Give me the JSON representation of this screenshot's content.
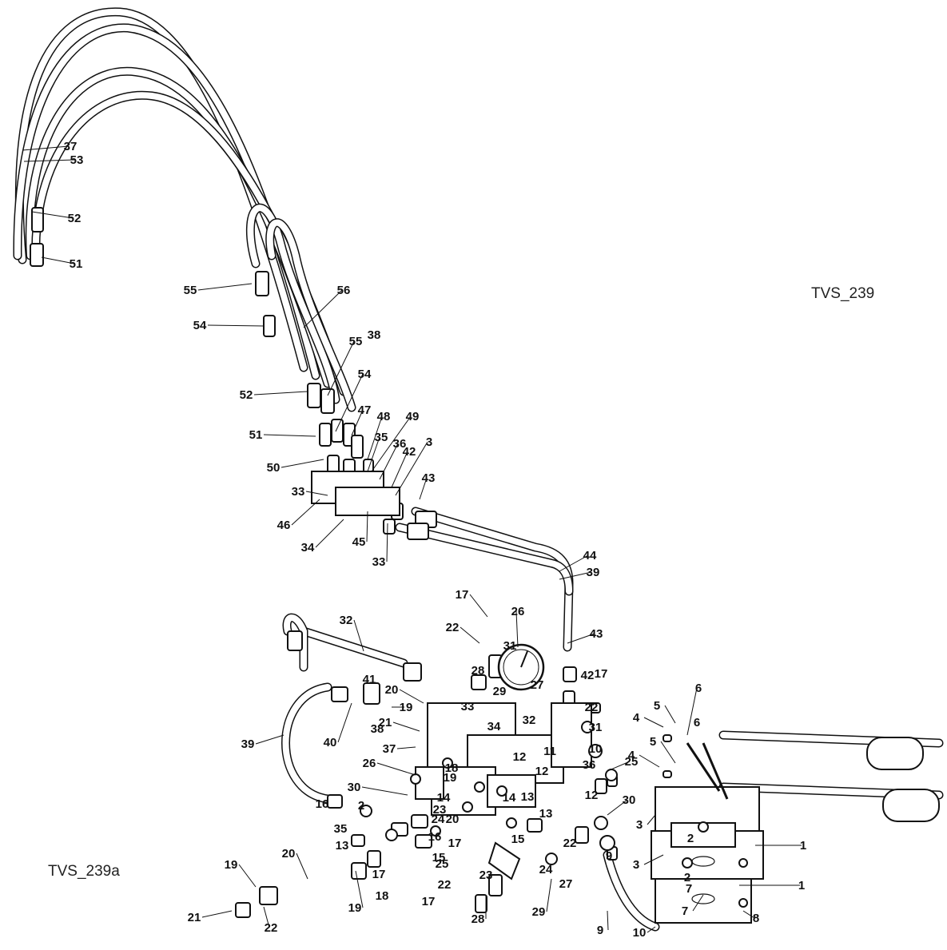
{
  "captions": {
    "top_ref": "TVS_239",
    "bottom_ref": "TVS_239a"
  },
  "colors": {
    "line": "#111111",
    "fill": "#ffffff",
    "shade": "#d9d9d9"
  },
  "part_numbers": [
    "1",
    "2",
    "3",
    "4",
    "5",
    "6",
    "7",
    "8",
    "9",
    "10",
    "11",
    "12",
    "13",
    "14",
    "15",
    "16",
    "17",
    "18",
    "19",
    "20",
    "21",
    "22",
    "23",
    "24",
    "25",
    "26",
    "27",
    "28",
    "29",
    "30",
    "31",
    "32",
    "33",
    "34",
    "35",
    "36",
    "37",
    "38",
    "39",
    "40",
    "41",
    "42",
    "43",
    "44",
    "45",
    "46",
    "47",
    "48",
    "49",
    "50",
    "51",
    "52",
    "53",
    "54",
    "55",
    "56"
  ],
  "icons": [
    "hose-assembly",
    "fitting",
    "valve-manifold",
    "pump-reservoir",
    "pressure-gauge"
  ]
}
